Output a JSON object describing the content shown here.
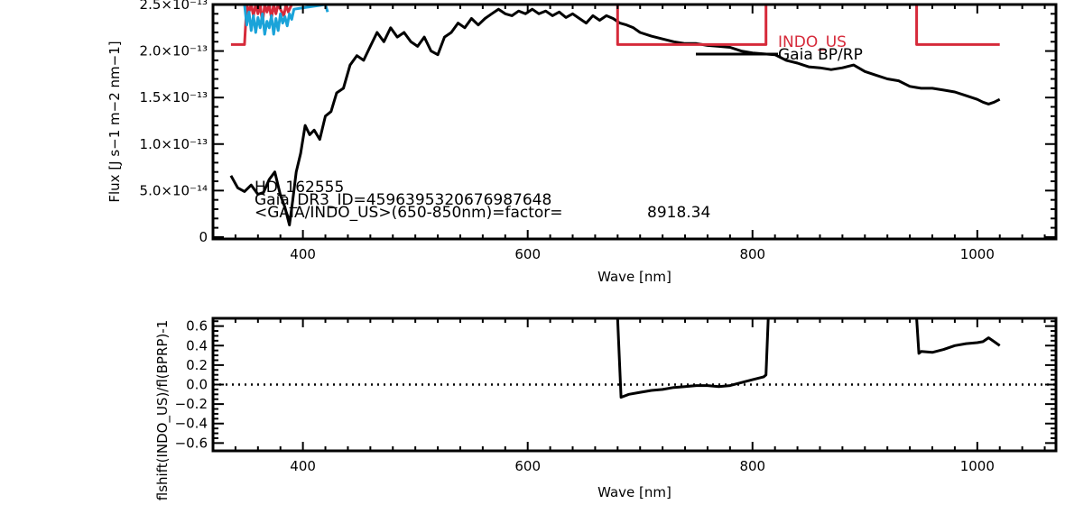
{
  "chart_data": [
    {
      "type": "line",
      "xlabel": "Wave [nm]",
      "ylabel": "Flux [J s−1 m−2 nm−1]",
      "xlim": [
        320,
        1070
      ],
      "ylim": [
        -2e-15,
        2.5e-13
      ],
      "xticks": [
        400,
        600,
        800,
        1000
      ],
      "xtick_labels": [
        "400",
        "600",
        "800",
        "1000"
      ],
      "yticks": [
        0,
        5e-14,
        1e-13,
        1.5e-13,
        2e-13,
        2.5e-13
      ],
      "ytick_labels": [
        "0",
        "5.0×10⁻¹⁴",
        "1.0×10⁻¹³",
        "1.5×10⁻¹³",
        "2.0×10⁻¹³",
        "2.5×10⁻¹³"
      ],
      "annotations": [
        "HD_162555",
        "Gaia_DR3_ID=4596395320676987648",
        "<GAIA/INDO_US>(650-850nm)=factor=",
        "8918.34"
      ],
      "legend": {
        "placement": "top-right",
        "entries": [
          {
            "label": "INDO_US",
            "color": "#d62a3a"
          },
          {
            "label": "Gaia BP/RP",
            "color": "#000000"
          }
        ]
      },
      "series": [
        {
          "name": "Gaia BP/RP",
          "color": "#000000",
          "x": [
            336,
            342,
            348,
            354,
            360,
            365,
            370,
            375,
            380,
            384,
            388,
            391,
            394,
            398,
            402,
            406,
            410,
            415,
            420,
            425,
            430,
            436,
            442,
            448,
            454,
            460,
            466,
            472,
            478,
            484,
            490,
            496,
            502,
            508,
            514,
            520,
            526,
            532,
            538,
            544,
            550,
            556,
            562,
            568,
            574,
            580,
            586,
            592,
            598,
            604,
            610,
            616,
            622,
            628,
            634,
            640,
            646,
            652,
            658,
            664,
            670,
            676,
            682,
            688,
            694,
            700,
            710,
            720,
            730,
            740,
            750,
            760,
            770,
            780,
            790,
            800,
            810,
            820,
            830,
            840,
            850,
            860,
            870,
            880,
            890,
            900,
            910,
            920,
            930,
            940,
            950,
            960,
            970,
            980,
            990,
            1000,
            1005,
            1010,
            1015,
            1020
          ],
          "y": [
            6.6e-14,
            5.3e-14,
            4.9e-14,
            5.6e-14,
            4.6e-14,
            4.8e-14,
            6.2e-14,
            7e-14,
            4.5e-14,
            3.2e-14,
            1.3e-14,
            4e-14,
            7e-14,
            9e-14,
            1.2e-13,
            1.1e-13,
            1.15e-13,
            1.05e-13,
            1.3e-13,
            1.35e-13,
            1.55e-13,
            1.6e-13,
            1.85e-13,
            1.95e-13,
            1.9e-13,
            2.05e-13,
            2.2e-13,
            2.1e-13,
            2.25e-13,
            2.15e-13,
            2.2e-13,
            2.1e-13,
            2.05e-13,
            2.15e-13,
            2e-13,
            1.96e-13,
            2.15e-13,
            2.2e-13,
            2.3e-13,
            2.25e-13,
            2.35e-13,
            2.28e-13,
            2.35e-13,
            2.4e-13,
            2.45e-13,
            2.4e-13,
            2.38e-13,
            2.43e-13,
            2.4e-13,
            2.45e-13,
            2.4e-13,
            2.43e-13,
            2.38e-13,
            2.42e-13,
            2.36e-13,
            2.4e-13,
            2.35e-13,
            2.3e-13,
            2.38e-13,
            2.33e-13,
            2.38e-13,
            2.35e-13,
            2.3e-13,
            2.28e-13,
            2.25e-13,
            2.2e-13,
            2.16e-13,
            2.13e-13,
            2.1e-13,
            2.08e-13,
            2.08e-13,
            2.06e-13,
            2.05e-13,
            2.04e-13,
            2e-13,
            1.98e-13,
            1.97e-13,
            1.96e-13,
            1.9e-13,
            1.87e-13,
            1.83e-13,
            1.82e-13,
            1.8e-13,
            1.82e-13,
            1.85e-13,
            1.78e-13,
            1.74e-13,
            1.7e-13,
            1.68e-13,
            1.62e-13,
            1.6e-13,
            1.6e-13,
            1.58e-13,
            1.56e-13,
            1.52e-13,
            1.48e-13,
            1.45e-13,
            1.43e-13,
            1.45e-13,
            1.48e-13
          ]
        },
        {
          "name": "INDO_US",
          "color": "#d62a3a",
          "x": [
            336,
            348,
            350,
            352,
            354,
            356,
            358,
            360,
            362,
            364,
            366,
            368,
            370,
            372,
            374,
            376,
            378,
            380,
            383,
            385,
            387,
            390,
            391,
            680,
            680,
            812,
            812,
            946,
            946,
            1020
          ],
          "y": [
            2.07e-13,
            2.07e-13,
            2.5e-13,
            2.42e-13,
            2.5e-13,
            2.38e-13,
            2.5e-13,
            2.4e-13,
            2.5e-13,
            2.3e-13,
            2.5e-13,
            2.42e-13,
            2.5e-13,
            2.35e-13,
            2.5e-13,
            2.4e-13,
            2.5e-13,
            2.45e-13,
            2.38e-13,
            2.5e-13,
            2.42e-13,
            2.5e-13,
            2.5e-13,
            2.5e-13,
            2.07e-13,
            2.07e-13,
            2.5e-13,
            2.5e-13,
            2.07e-13,
            2.07e-13
          ]
        },
        {
          "color": "#1aa3d9",
          "x": [
            348,
            350,
            352,
            354,
            356,
            358,
            360,
            362,
            364,
            366,
            368,
            370,
            372,
            374,
            376,
            378,
            380,
            382,
            384,
            386,
            388,
            390,
            392,
            420,
            422
          ],
          "y": [
            2.5e-13,
            2.28e-13,
            2.42e-13,
            2.22e-13,
            2.38e-13,
            2.2e-13,
            2.36e-13,
            2.25e-13,
            2.4e-13,
            2.18e-13,
            2.32e-13,
            2.25e-13,
            2.38e-13,
            2.18e-13,
            2.35e-13,
            2.22e-13,
            2.4e-13,
            2.3e-13,
            2.37e-13,
            2.27e-13,
            2.4e-13,
            2.34e-13,
            2.45e-13,
            2.5e-13,
            2.42e-13
          ]
        }
      ]
    },
    {
      "type": "line",
      "xlabel": "Wave [nm]",
      "ylabel": "flshift(INDO_US)/fl(BPRP)-1",
      "xlim": [
        320,
        1070
      ],
      "ylim": [
        -0.68,
        0.68
      ],
      "xticks": [
        400,
        600,
        800,
        1000
      ],
      "xtick_labels": [
        "400",
        "600",
        "800",
        "1000"
      ],
      "yticks": [
        -0.6,
        -0.4,
        -0.2,
        0.0,
        0.2,
        0.4,
        0.6
      ],
      "ytick_labels": [
        "−0.6",
        "−0.4",
        "−0.2",
        "0.0",
        "0.2",
        "0.4",
        "0.6"
      ],
      "reference_line": {
        "y": 0.0,
        "style": "dotted"
      },
      "series": [
        {
          "color": "#000000",
          "x": [
            680,
            683,
            690,
            700,
            710,
            720,
            730,
            740,
            750,
            760,
            770,
            780,
            790,
            800,
            810,
            812,
            814,
            816
          ],
          "y": [
            0.68,
            -0.13,
            -0.1,
            -0.08,
            -0.06,
            -0.05,
            -0.03,
            -0.02,
            -0.01,
            -0.01,
            -0.02,
            -0.01,
            0.02,
            0.05,
            0.08,
            0.1,
            0.68,
            0.68
          ]
        },
        {
          "color": "#000000",
          "x": [
            946,
            948,
            950,
            960,
            970,
            980,
            990,
            1000,
            1005,
            1010,
            1015,
            1020
          ],
          "y": [
            0.68,
            0.32,
            0.34,
            0.33,
            0.36,
            0.4,
            0.42,
            0.43,
            0.44,
            0.48,
            0.44,
            0.4
          ]
        }
      ]
    }
  ]
}
